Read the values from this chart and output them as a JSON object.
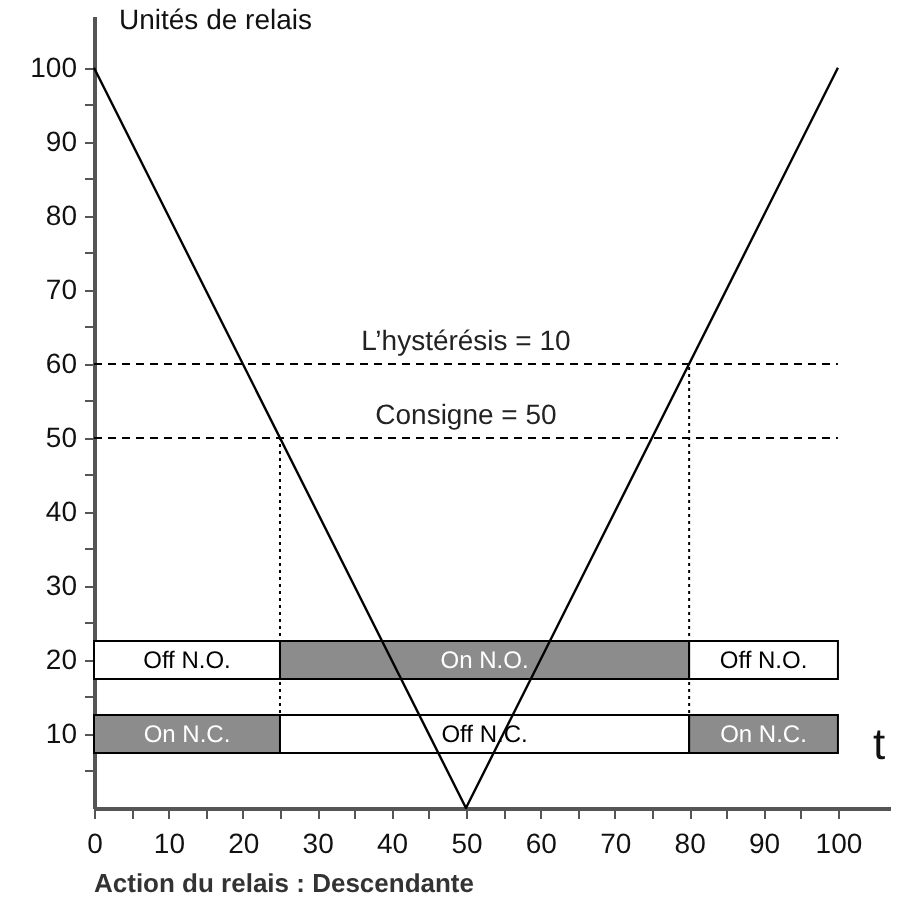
{
  "chart_data": {
    "type": "line",
    "xlabel": "t",
    "ylabel": "Unités de relais",
    "annotations": [
      "Action du relais : Descendante",
      {
        "text": "L’hystérésis = 10",
        "x": 50,
        "y": 60
      }
    ],
    "xlim": [
      0,
      107
    ],
    "ylim": [
      0,
      107
    ],
    "xticks": [
      0,
      {
        "value": 5,
        "label": null
      },
      10,
      {
        "value": 15,
        "label": null
      },
      20,
      {
        "value": 25,
        "label": null
      },
      30,
      {
        "value": 35,
        "label": null
      },
      40,
      {
        "value": 45,
        "label": null
      },
      50,
      {
        "value": 55,
        "label": null
      },
      60,
      {
        "value": 65,
        "label": null
      },
      70,
      {
        "value": 75,
        "label": null
      },
      80,
      {
        "value": 85,
        "label": null
      },
      90,
      {
        "value": 95,
        "label": null
      },
      100
    ],
    "yticks": [
      {
        "value": 5,
        "label": null
      },
      10,
      {
        "value": 15,
        "label": null
      },
      20,
      {
        "value": 25,
        "label": null
      },
      30,
      {
        "value": 35,
        "label": null
      },
      40,
      {
        "value": 45,
        "label": null
      },
      50,
      {
        "value": 55,
        "label": null
      },
      60,
      {
        "value": 65,
        "label": null
      },
      70,
      {
        "value": 75,
        "label": null
      },
      80,
      {
        "value": 85,
        "label": null
      },
      90,
      {
        "value": 95,
        "label": null
      },
      100
    ],
    "series": [
      {
        "color": "#000000",
        "x": [
          0,
          50,
          100
        ],
        "values": [
          100,
          0,
          100
        ]
      }
    ],
    "bands": [
      {
        "axis": "x",
        "from": 0,
        "to": 25,
        "label": "Off N.O.",
        "color": "#ffffff"
      },
      {
        "axis": "x",
        "from": 25,
        "to": 80,
        "label": "On N.O.",
        "color": "#8c8c8c"
      },
      {
        "axis": "x",
        "from": 80,
        "to": 100,
        "label": "Off N.O.",
        "color": "#ffffff"
      },
      {
        "axis": "x",
        "from": 0,
        "to": 25,
        "label": "On N.C.",
        "color": "#8c8c8c"
      },
      {
        "axis": "x",
        "from": 25,
        "to": 80,
        "label": "Off N.C.",
        "color": "#ffffff"
      },
      {
        "axis": "x",
        "from": 80,
        "to": 100,
        "label": "On N.C.",
        "color": "#8c8c8c"
      }
    ],
    "ref_lines": [
      {
        "axis": "y",
        "value": 60,
        "line_style": "dashed"
      },
      {
        "axis": "y",
        "value": 50,
        "label": "Consigne = 50",
        "line_style": "dashed"
      },
      {
        "axis": "x",
        "value": 25,
        "line_style": "dotted"
      },
      {
        "axis": "x",
        "value": 80,
        "line_style": "dotted"
      }
    ],
    "grid": false
  }
}
